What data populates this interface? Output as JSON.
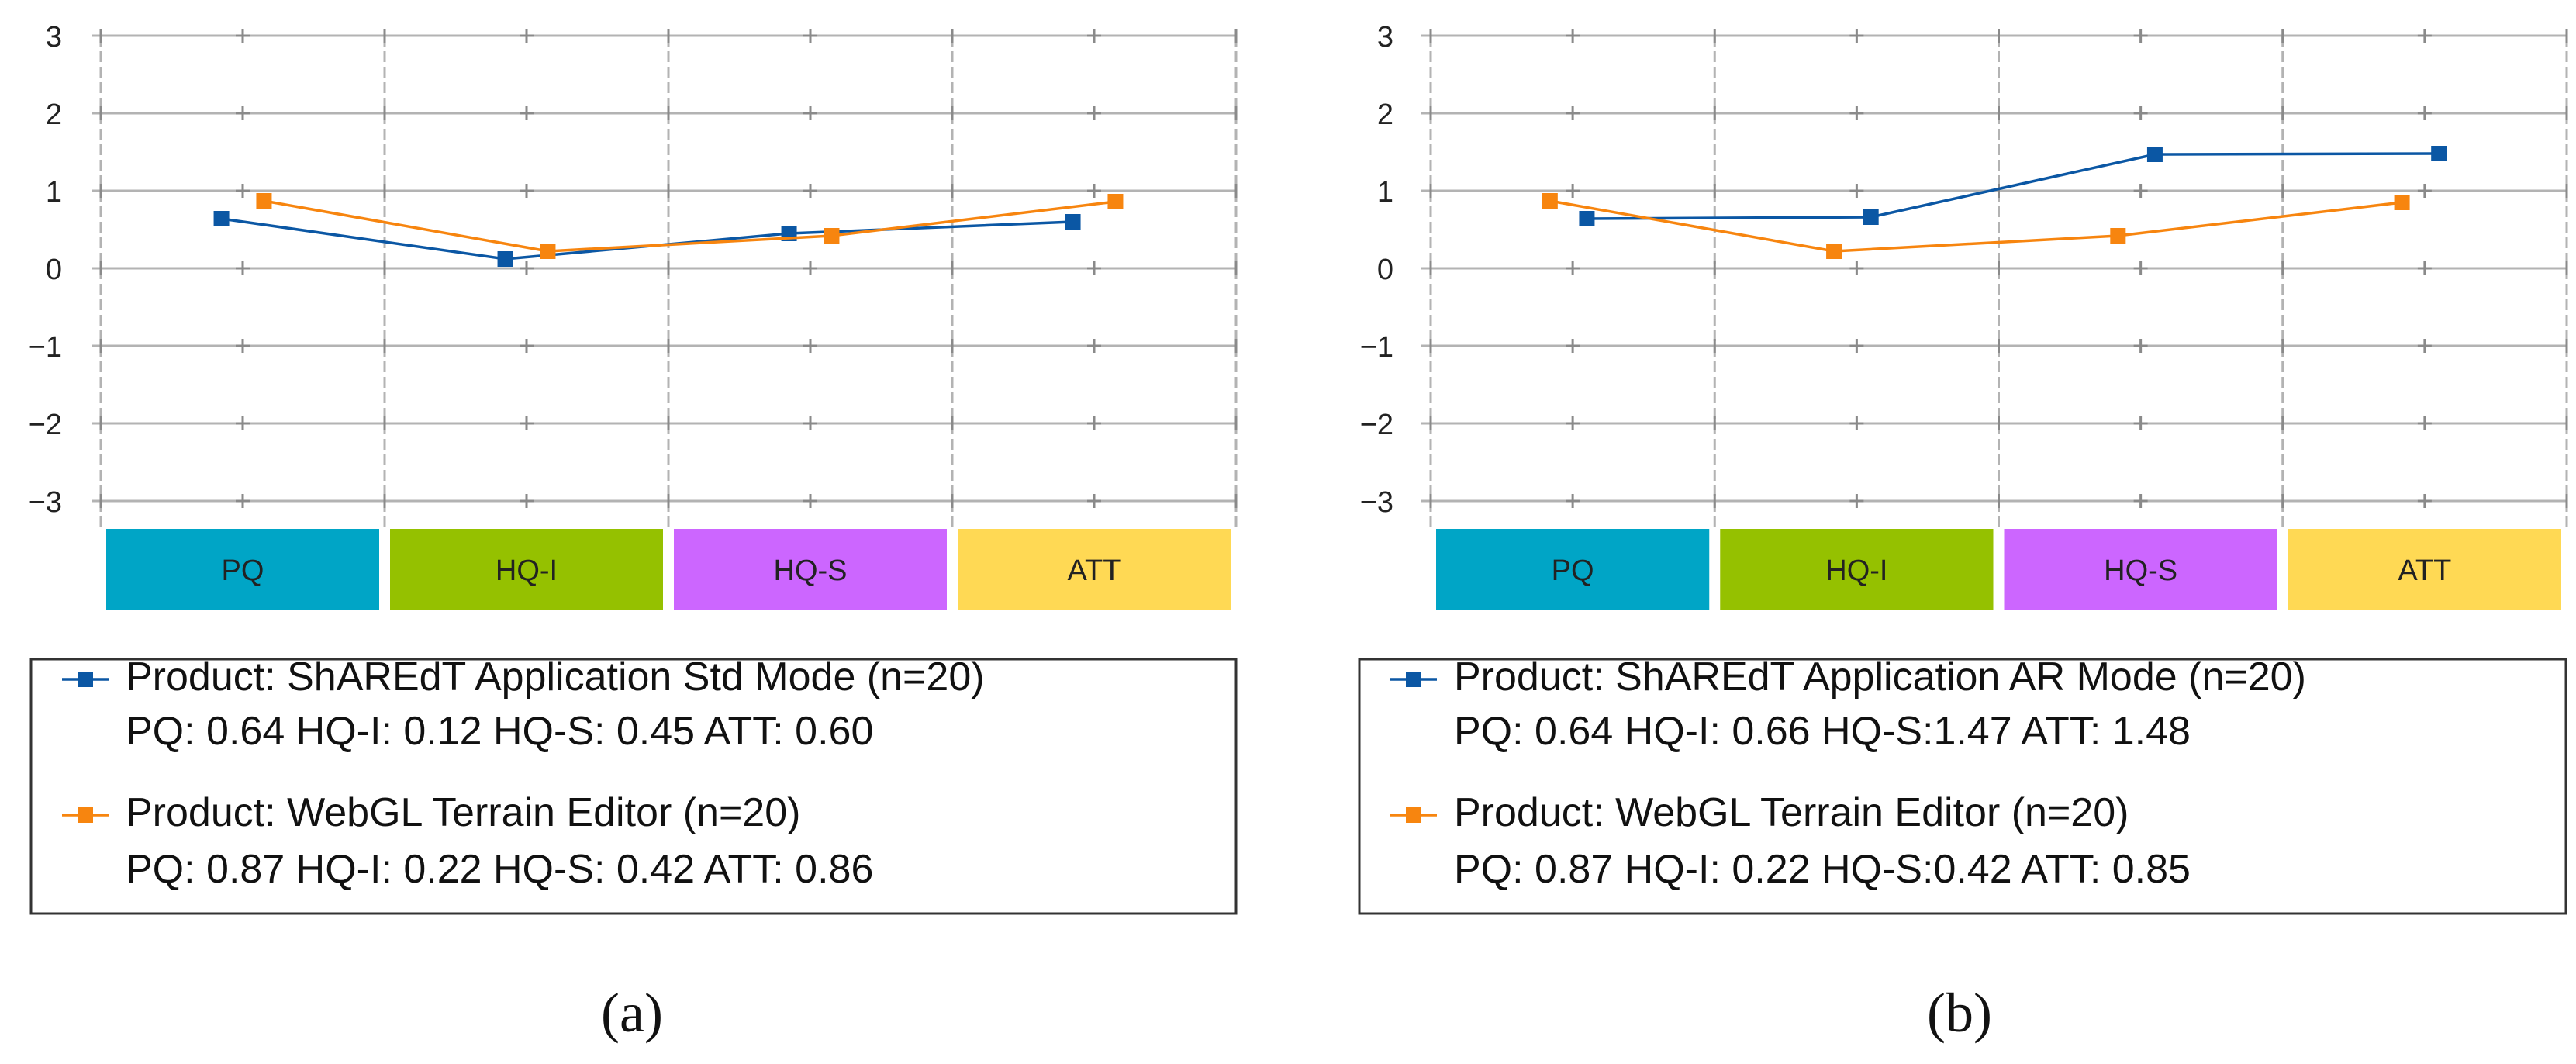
{
  "colors": {
    "series_a": "#0b57a4",
    "series_b": "#f7850f",
    "grid": "#b3b3b3",
    "PQ": "#00a5c6",
    "HQ-I": "#95c100",
    "HQ-S": "#cc66ff",
    "ATT": "#ffd954"
  },
  "chart_data": [
    {
      "type": "line",
      "caption": "(a)",
      "ylim": [
        -3,
        3
      ],
      "yticks": [
        "3",
        "2",
        "1",
        "0",
        "−1",
        "−2",
        "−3"
      ],
      "categories": [
        "PQ",
        "HQ-I",
        "HQ-S",
        "ATT"
      ],
      "grid": true,
      "legend_position": "below",
      "series": [
        {
          "name": "Product: ShAREdT Application Std Mode (n=20)",
          "summary": "PQ: 0.64 HQ-I: 0.12 HQ-S: 0.45 ATT: 0.60",
          "values": [
            0.64,
            0.12,
            0.45,
            0.6
          ],
          "color": "#0b57a4"
        },
        {
          "name": "Product: WebGL Terrain Editor (n=20)",
          "summary": "PQ: 0.87 HQ-I: 0.22 HQ-S: 0.42 ATT: 0.86",
          "values": [
            0.87,
            0.22,
            0.42,
            0.86
          ],
          "color": "#f7850f"
        }
      ]
    },
    {
      "type": "line",
      "caption": "(b)",
      "ylim": [
        -3,
        3
      ],
      "yticks": [
        "3",
        "2",
        "1",
        "0",
        "−1",
        "−2",
        "−3"
      ],
      "categories": [
        "PQ",
        "HQ-I",
        "HQ-S",
        "ATT"
      ],
      "grid": true,
      "legend_position": "below",
      "series": [
        {
          "name": "Product: ShAREdT Application AR Mode (n=20)",
          "summary": "PQ: 0.64 HQ-I: 0.66 HQ-S:1.47 ATT: 1.48",
          "values": [
            0.64,
            0.66,
            1.47,
            1.48
          ],
          "color": "#0b57a4"
        },
        {
          "name": "Product: WebGL Terrain Editor (n=20)",
          "summary": "PQ: 0.87 HQ-I: 0.22 HQ-S:0.42 ATT: 0.85",
          "values": [
            0.87,
            0.22,
            0.42,
            0.85
          ],
          "color": "#f7850f"
        }
      ]
    }
  ]
}
